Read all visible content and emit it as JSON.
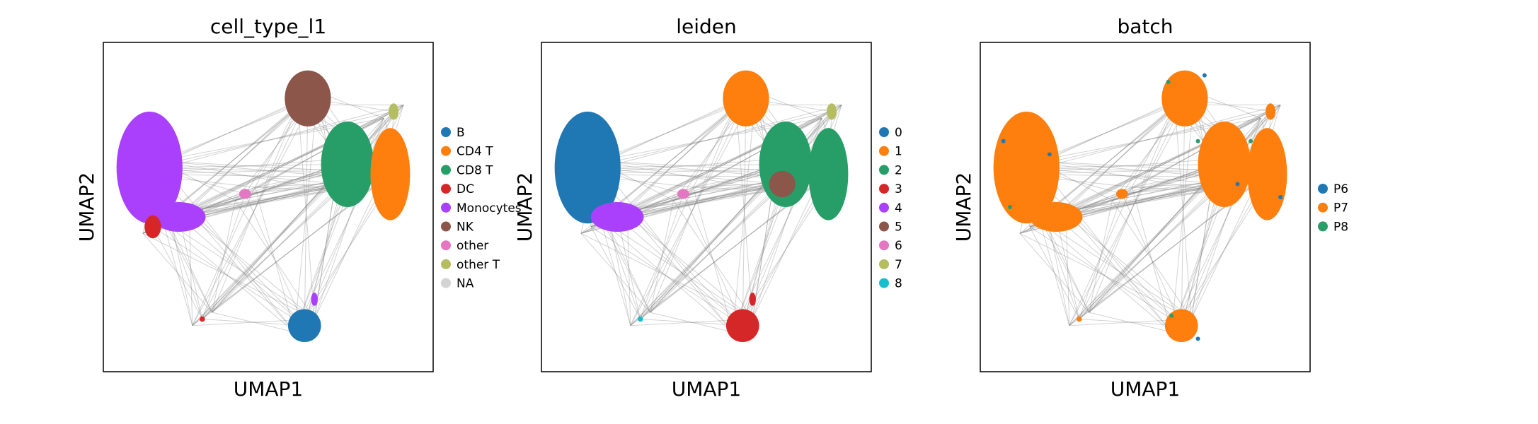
{
  "chart_data": [
    {
      "type": "scatter",
      "title": "cell_type_l1",
      "xlabel": "UMAP1",
      "ylabel": "UMAP2",
      "grid": false,
      "ticks": false,
      "legend_position": "right",
      "overlay": "paga-graph-edges",
      "edge_color": "#808080",
      "legend": [
        {
          "label": "B",
          "color": "#1f77b4"
        },
        {
          "label": "CD4 T",
          "color": "#ff7f0e"
        },
        {
          "label": "CD8 T",
          "color": "#279e68"
        },
        {
          "label": "DC",
          "color": "#d62728"
        },
        {
          "label": "Monocytes",
          "color": "#aa40fc"
        },
        {
          "label": "NK",
          "color": "#8c564b"
        },
        {
          "label": "other",
          "color": "#e377c2"
        },
        {
          "label": "other T",
          "color": "#b5bd61"
        },
        {
          "label": "NA",
          "color": "#d3d3d3"
        }
      ]
    },
    {
      "type": "scatter",
      "title": "leiden",
      "xlabel": "UMAP1",
      "ylabel": "UMAP2",
      "grid": false,
      "ticks": false,
      "legend_position": "right",
      "overlay": "paga-graph-edges",
      "edge_color": "#808080",
      "legend": [
        {
          "label": "0",
          "color": "#1f77b4"
        },
        {
          "label": "1",
          "color": "#ff7f0e"
        },
        {
          "label": "2",
          "color": "#279e68"
        },
        {
          "label": "3",
          "color": "#d62728"
        },
        {
          "label": "4",
          "color": "#aa40fc"
        },
        {
          "label": "5",
          "color": "#8c564b"
        },
        {
          "label": "6",
          "color": "#e377c2"
        },
        {
          "label": "7",
          "color": "#b5bd61"
        },
        {
          "label": "8",
          "color": "#17becf"
        }
      ]
    },
    {
      "type": "scatter",
      "title": "batch",
      "xlabel": "UMAP1",
      "ylabel": "UMAP2",
      "grid": false,
      "ticks": false,
      "legend_position": "right",
      "overlay": "paga-graph-edges",
      "edge_color": "#808080",
      "legend": [
        {
          "label": "P6",
          "color": "#1f77b4"
        },
        {
          "label": "P7",
          "color": "#ff7f0e"
        },
        {
          "label": "P8",
          "color": "#279e68"
        }
      ]
    }
  ]
}
